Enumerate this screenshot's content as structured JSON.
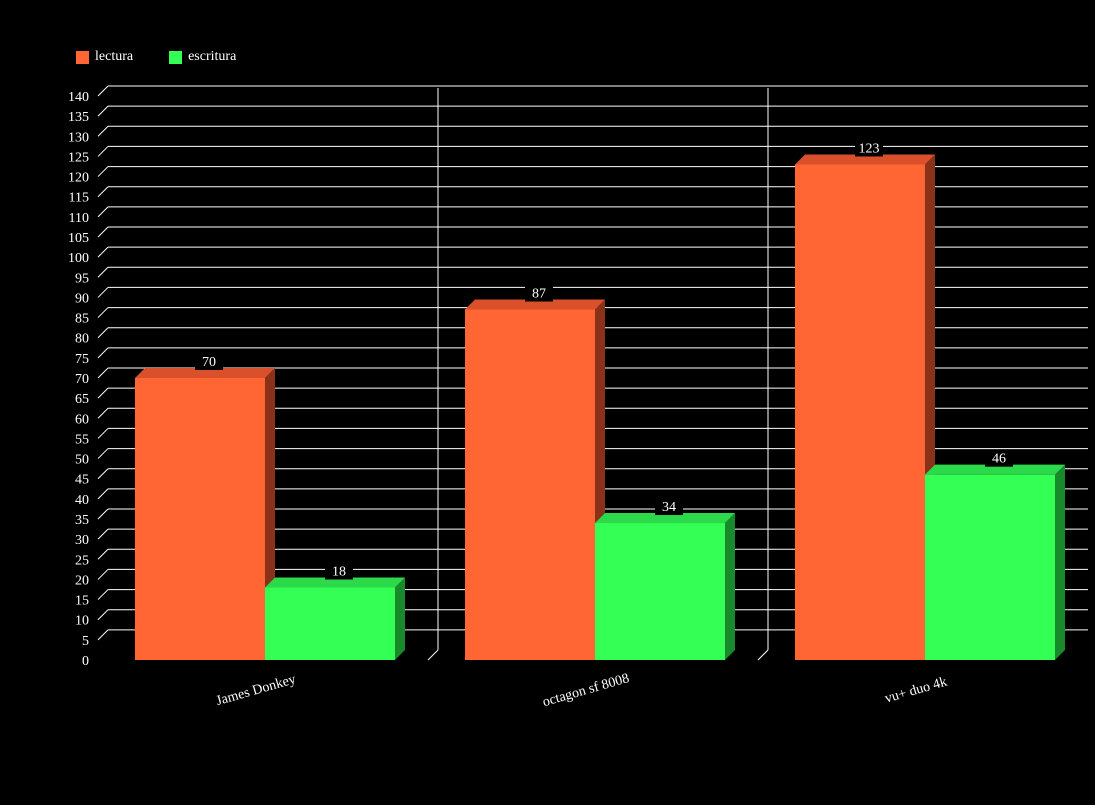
{
  "chart_data": {
    "type": "bar",
    "categories": [
      "James Donkey",
      "octagon sf 8008",
      "vu+ duo 4k"
    ],
    "series": [
      {
        "name": "lectura",
        "values": [
          70,
          87,
          123
        ],
        "color": "#ff6633",
        "side_color": "#8a3219",
        "top_color": "#d9502a"
      },
      {
        "name": "escritura",
        "values": [
          18,
          34,
          46
        ],
        "color": "#33ff55",
        "side_color": "#198a2b",
        "top_color": "#2bd94a"
      }
    ],
    "ylim": [
      0,
      140
    ],
    "ytick_step": 5,
    "grid": true,
    "legend_position": "top-left",
    "background": "#000000",
    "title": "",
    "xlabel": "",
    "ylabel": ""
  }
}
